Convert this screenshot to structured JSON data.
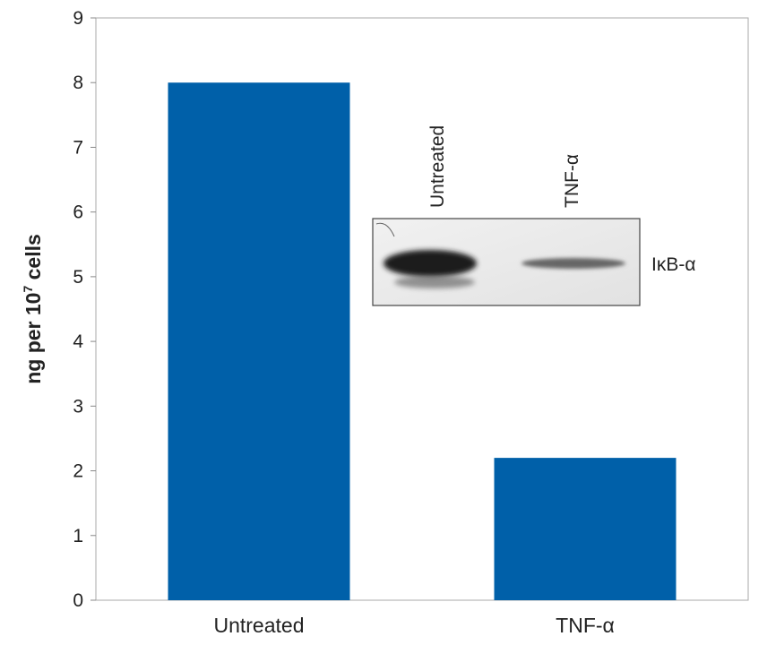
{
  "chart_data": {
    "type": "bar",
    "categories": [
      "Untreated",
      "TNF-α"
    ],
    "values": [
      8.0,
      2.2
    ],
    "ylabel_text": "ng per 10",
    "ylabel_sup": "7",
    "ylabel_suffix": " cells",
    "ylim": [
      0,
      9
    ],
    "yticks": [
      0,
      1,
      2,
      3,
      4,
      5,
      6,
      7,
      8,
      9
    ],
    "grid": false,
    "colors": {
      "bar": "#0060a9",
      "axis": "#888888",
      "frame": "#999999"
    }
  },
  "inset": {
    "lane_labels": [
      "Untreated",
      "TNF-α"
    ],
    "band_label": "IκB-α",
    "band_intensity": [
      1.0,
      0.35
    ]
  }
}
